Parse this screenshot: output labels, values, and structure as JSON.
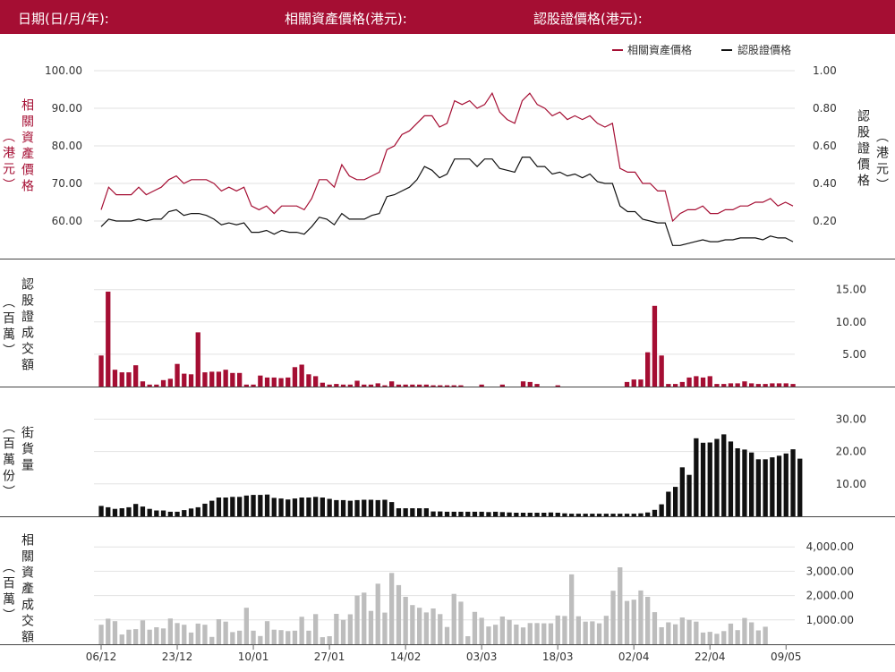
{
  "header": {
    "date_label": "日期(日/月/年):",
    "asset_price_label": "相關資產價格(港元):",
    "warrant_price_label": "認股證價格(港元):"
  },
  "colors": {
    "brand": "#a50e33",
    "warrant_line": "#111111",
    "outstanding_bars": "#111111",
    "asset_turnover_bars": "#bdbdbd"
  },
  "x_tick_labels": [
    "06/12",
    "23/12",
    "10/01",
    "27/01",
    "14/02",
    "03/03",
    "18/03",
    "02/04",
    "22/04",
    "09/05"
  ],
  "chart_data": [
    {
      "type": "line",
      "legend": [
        "相關資產價格",
        "認股證價格"
      ],
      "legend_position": "top-right",
      "left_axis_label": "相關資產價格（港元）",
      "right_axis_label": "認股證價格（港元）",
      "left_ticks": [
        "100.00",
        "90.00",
        "80.00",
        "70.00",
        "60.00"
      ],
      "right_ticks": [
        "1.00",
        "0.80",
        "0.60",
        "0.40",
        "0.20"
      ],
      "ylim_left": [
        52,
        100
      ],
      "ylim_right": [
        0.04,
        1.0
      ],
      "series": [
        {
          "name": "相關資產價格",
          "axis": "left",
          "values": [
            63,
            69,
            67,
            67,
            67,
            69,
            67,
            68,
            69,
            71,
            72,
            70,
            71,
            71,
            71,
            70,
            68,
            69,
            68,
            69,
            64,
            63,
            64,
            62,
            64,
            64,
            64,
            63,
            66,
            71,
            71,
            69,
            75,
            72,
            71,
            71,
            72,
            73,
            79,
            80,
            83,
            84,
            86,
            88,
            88,
            85,
            86,
            92,
            91,
            92,
            90,
            91,
            94,
            89,
            87,
            86,
            92,
            94,
            91,
            90,
            88,
            89,
            87,
            88,
            87,
            88,
            86,
            85,
            86,
            74,
            73,
            73,
            70,
            70,
            68,
            68,
            60,
            62,
            63,
            63,
            64,
            62,
            62,
            63,
            63,
            64,
            64,
            65,
            65,
            66,
            64,
            65,
            64
          ],
          "values_note": ""
        },
        {
          "name": "認股證價格",
          "axis": "right",
          "values": [
            0.17,
            0.21,
            0.2,
            0.2,
            0.2,
            0.21,
            0.2,
            0.21,
            0.21,
            0.25,
            0.26,
            0.23,
            0.24,
            0.24,
            0.23,
            0.21,
            0.18,
            0.19,
            0.18,
            0.19,
            0.14,
            0.14,
            0.15,
            0.13,
            0.15,
            0.14,
            0.14,
            0.13,
            0.17,
            0.22,
            0.21,
            0.18,
            0.24,
            0.21,
            0.21,
            0.21,
            0.23,
            0.24,
            0.33,
            0.34,
            0.36,
            0.38,
            0.42,
            0.49,
            0.47,
            0.43,
            0.45,
            0.53,
            0.53,
            0.53,
            0.49,
            0.53,
            0.53,
            0.48,
            0.47,
            0.46,
            0.54,
            0.54,
            0.49,
            0.49,
            0.45,
            0.46,
            0.44,
            0.45,
            0.43,
            0.45,
            0.41,
            0.4,
            0.4,
            0.28,
            0.25,
            0.25,
            0.21,
            0.2,
            0.19,
            0.19,
            0.07,
            0.07,
            0.08,
            0.09,
            0.1,
            0.09,
            0.09,
            0.1,
            0.1,
            0.11,
            0.11,
            0.11,
            0.1,
            0.12,
            0.11,
            0.11,
            0.09
          ]
        }
      ]
    },
    {
      "type": "bar",
      "ylabel": "認股證成交額（百萬）",
      "ticks": [
        "15.00",
        "10.00",
        "5.00"
      ],
      "ylim": [
        0,
        17.5
      ],
      "values": [
        4.8,
        14.7,
        2.6,
        2.2,
        2.2,
        3.3,
        0.8,
        0.3,
        0.3,
        1.0,
        1.2,
        3.5,
        2.0,
        1.9,
        8.4,
        2.2,
        2.3,
        2.3,
        2.6,
        2.1,
        2.1,
        0.3,
        0.3,
        1.7,
        1.4,
        1.4,
        1.3,
        1.4,
        3.0,
        3.4,
        1.9,
        1.6,
        0.6,
        0.3,
        0.4,
        0.3,
        0.3,
        0.9,
        0.3,
        0.3,
        0.5,
        0.2,
        0.8,
        0.3,
        0.3,
        0.3,
        0.3,
        0.3,
        0.2,
        0.2,
        0.2,
        0.2,
        0.2,
        0.0,
        0.0,
        0.3,
        0.0,
        0.0,
        0.3,
        0.0,
        0.0,
        0.8,
        0.7,
        0.4,
        0.0,
        0.0,
        0.2,
        0.0,
        0.0,
        0.0,
        0.0,
        0.0,
        0.0,
        0.0,
        0.0,
        0.0,
        0.7,
        1.1,
        1.1,
        5.3,
        12.5,
        4.8,
        0.4,
        0.4,
        0.7,
        1.4,
        1.6,
        1.4,
        1.6,
        0.4,
        0.4,
        0.5,
        0.5,
        0.8,
        0.5,
        0.4,
        0.4,
        0.5,
        0.5,
        0.5,
        0.4
      ]
    },
    {
      "type": "bar",
      "ylabel": "街貨量（百萬份）",
      "ticks": [
        "30.00",
        "20.00",
        "10.00"
      ],
      "ylim": [
        0,
        35
      ],
      "values": [
        3.2,
        2.8,
        2.3,
        2.5,
        2.8,
        3.8,
        3.0,
        2.3,
        1.8,
        1.8,
        1.4,
        1.4,
        1.9,
        2.4,
        2.8,
        3.9,
        4.8,
        5.8,
        5.8,
        6.0,
        6.0,
        6.4,
        6.6,
        6.6,
        6.7,
        5.7,
        5.5,
        5.2,
        5.5,
        5.8,
        5.8,
        6.0,
        5.8,
        5.4,
        5.0,
        5.0,
        4.8,
        5.0,
        5.1,
        5.1,
        5.0,
        5.1,
        4.4,
        2.5,
        2.5,
        2.5,
        2.5,
        2.5,
        1.5,
        1.5,
        1.4,
        1.4,
        1.4,
        1.4,
        1.4,
        1.4,
        1.3,
        1.4,
        1.3,
        1.2,
        1.1,
        1.1,
        1.1,
        1.1,
        1.1,
        1.2,
        1.1,
        0.9,
        0.8,
        0.8,
        0.8,
        0.8,
        0.8,
        0.8,
        0.8,
        0.8,
        0.8,
        0.8,
        0.9,
        1.2,
        2.0,
        3.7,
        7.6,
        9.1,
        15.1,
        12.8,
        24.1,
        22.7,
        22.8,
        23.9,
        25.3,
        23.1,
        21.0,
        20.6,
        19.7,
        17.6,
        17.6,
        18.2,
        18.7,
        19.4,
        20.7,
        17.8
      ]
    },
    {
      "type": "bar",
      "ylabel": "相關資產成交額（百萬）",
      "ticks": [
        "4,000.00",
        "3,000.00",
        "2,000.00",
        "1,000.00"
      ],
      "ylim": [
        0,
        4400
      ],
      "values": [
        800,
        1050,
        950,
        400,
        600,
        620,
        980,
        600,
        700,
        650,
        1060,
        870,
        800,
        480,
        850,
        800,
        300,
        1030,
        930,
        500,
        560,
        1500,
        560,
        340,
        950,
        600,
        580,
        540,
        560,
        1130,
        560,
        1240,
        290,
        330,
        1250,
        1000,
        1230,
        2000,
        2120,
        1370,
        2490,
        1300,
        2930,
        2430,
        1950,
        1610,
        1500,
        1310,
        1470,
        1240,
        710,
        2070,
        1750,
        330,
        1330,
        1090,
        730,
        800,
        1140,
        1000,
        810,
        690,
        870,
        870,
        860,
        860,
        1180,
        1160,
        2870,
        1150,
        930,
        940,
        860,
        1170,
        2200,
        3160,
        1780,
        1830,
        2210,
        1950,
        1320,
        700,
        900,
        820,
        1100,
        1000,
        930,
        480,
        510,
        430,
        540,
        850,
        580,
        1080,
        900,
        570,
        720
      ]
    }
  ]
}
